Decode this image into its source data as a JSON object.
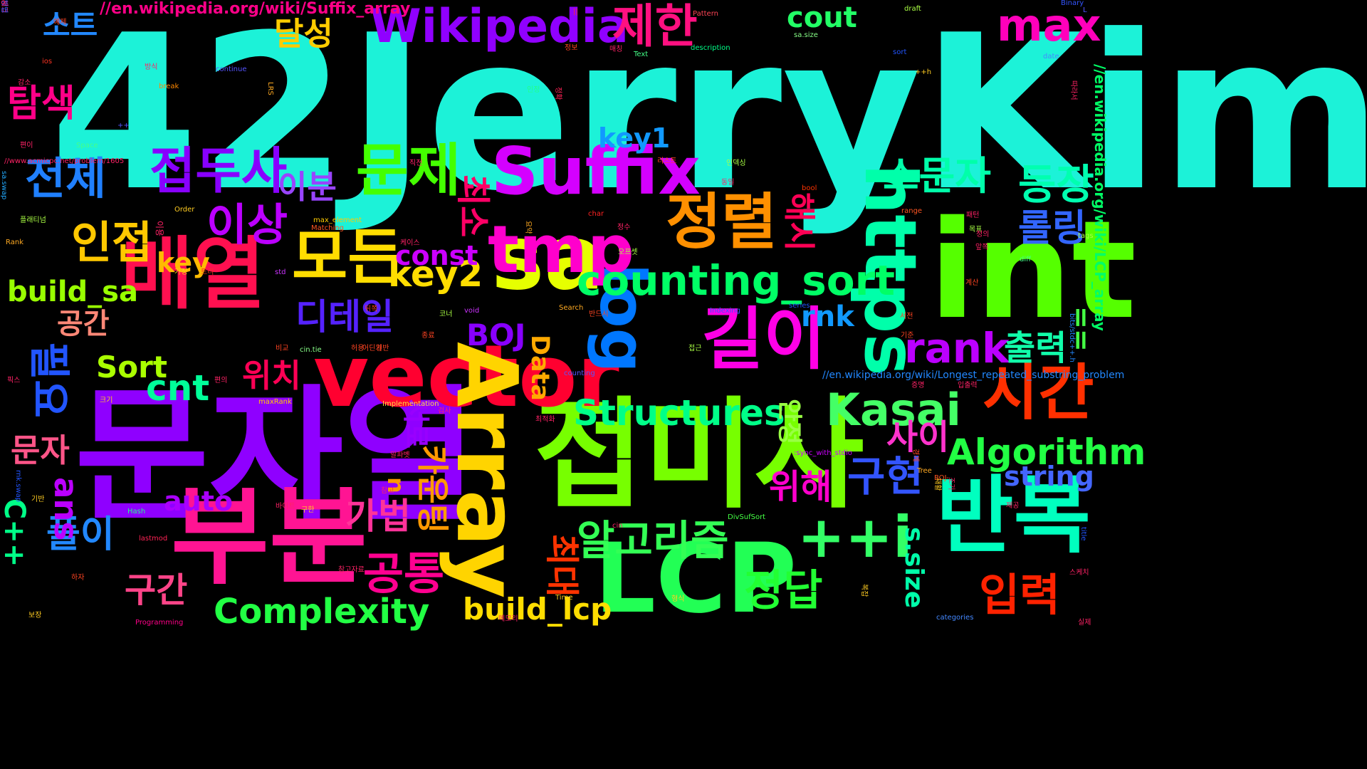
{
  "words": [
    {
      "text": "42JerryKim",
      "color": "#1cf2d8",
      "vertical": false
    },
    {
      "text": "문자열",
      "color": "#8f00ff",
      "vertical": false
    },
    {
      "text": "int",
      "color": "#55ff00",
      "vertical": false
    },
    {
      "text": "접미사",
      "color": "#77ff00",
      "vertical": false
    },
    {
      "text": "부분",
      "color": "#ff1493",
      "vertical": false
    },
    {
      "text": "vector",
      "color": "#ff0030",
      "vertical": false
    },
    {
      "text": "배열",
      "color": "#ff1050",
      "vertical": false
    },
    {
      "text": "반복",
      "color": "#00ffbf",
      "vertical": false
    },
    {
      "text": "LCP",
      "color": "#22ff55",
      "vertical": false
    },
    {
      "text": "Array",
      "color": "#ffd400",
      "vertical": true
    },
    {
      "text": "sa",
      "color": "#e6ff00",
      "vertical": false
    },
    {
      "text": "Suffix",
      "color": "#d400ff",
      "vertical": false
    },
    {
      "text": "https",
      "color": "#00ffaa",
      "vertical": true
    },
    {
      "text": "길이",
      "color": "#ff00e6",
      "vertical": false
    },
    {
      "text": "log",
      "color": "#0077ff",
      "vertical": true
    },
    {
      "text": "tmp",
      "color": "#ff00cc",
      "vertical": false
    },
    {
      "text": "시간",
      "color": "#ff3000",
      "vertical": false
    },
    {
      "text": "모든",
      "color": "#ffdd00",
      "vertical": false
    },
    {
      "text": "정렬",
      "color": "#ff9000",
      "vertical": false
    },
    {
      "text": "문제",
      "color": "#44ff00",
      "vertical": false
    },
    {
      "text": "++i",
      "color": "#33ff66",
      "vertical": false
    },
    {
      "text": "Wikipedia",
      "color": "#9000ff",
      "vertical": false
    },
    {
      "text": "counting_sort",
      "color": "#00ff66",
      "vertical": false
    },
    {
      "text": "Kasai",
      "color": "#44ff66",
      "vertical": false
    },
    {
      "text": "Algorithm",
      "color": "#22ff44",
      "vertical": false
    },
    {
      "text": "Structures",
      "color": "#00ff88",
      "vertical": false
    },
    {
      "text": "Complexity",
      "color": "#22ff44",
      "vertical": false
    },
    {
      "text": "max",
      "color": "#ff00bb",
      "vertical": false
    },
    {
      "text": "rank",
      "color": "#bb00ff",
      "vertical": false
    },
    {
      "text": "접두사",
      "color": "#8800ff",
      "vertical": false
    },
    {
      "text": "인접",
      "color": "#ffc800",
      "vertical": false
    },
    {
      "text": "전체",
      "color": "#2080ff",
      "vertical": false
    },
    {
      "text": "이상",
      "color": "#bb00ff",
      "vertical": false
    },
    {
      "text": "제한",
      "color": "#ff1080",
      "vertical": false
    },
    {
      "text": "입력",
      "color": "#ff2200",
      "vertical": false
    },
    {
      "text": "정답",
      "color": "#22ff33",
      "vertical": false
    },
    {
      "text": "공통",
      "color": "#ff0090",
      "vertical": false
    },
    {
      "text": "구현",
      "color": "#3355ff",
      "vertical": false
    },
    {
      "text": "알고리즘",
      "color": "#33ff55",
      "vertical": false
    },
    {
      "text": "등장",
      "color": "#00ffb0",
      "vertical": false
    },
    {
      "text": "소문자",
      "color": "#00ffaa",
      "vertical": false
    },
    {
      "text": "롤링",
      "color": "#3366ff",
      "vertical": false
    },
    {
      "text": "출력",
      "color": "#11ffaa",
      "vertical": false
    },
    {
      "text": "사이",
      "color": "#ff33cc",
      "vertical": false
    },
    {
      "text": "위해",
      "color": "#ff00cc",
      "vertical": false
    },
    {
      "text": "가법",
      "color": "#ff3399",
      "vertical": false
    },
    {
      "text": "풀이",
      "color": "#2288ff",
      "vertical": false
    },
    {
      "text": "구간",
      "color": "#ff4488",
      "vertical": false
    },
    {
      "text": "문자",
      "color": "#ff5588",
      "vertical": false
    },
    {
      "text": "공간",
      "color": "#ff8877",
      "vertical": false
    },
    {
      "text": "탐색",
      "color": "#ff0088",
      "vertical": false
    },
    {
      "text": "소트",
      "color": "#2288ff",
      "vertical": false
    },
    {
      "text": "달성",
      "color": "#ffcc00",
      "vertical": false
    },
    {
      "text": "이분",
      "color": "#9944ff",
      "vertical": false
    },
    {
      "text": "위치",
      "color": "#ff0055",
      "vertical": false
    },
    {
      "text": "디테일",
      "color": "#5522ff",
      "vertical": false
    },
    {
      "text": "key2",
      "color": "#ffdd00",
      "vertical": false
    },
    {
      "text": "key1",
      "color": "#1199ff",
      "vertical": false
    },
    {
      "text": "key",
      "color": "#ffbb00",
      "vertical": false
    },
    {
      "text": "const",
      "color": "#cc00ff",
      "vertical": false
    },
    {
      "text": "cout",
      "color": "#22ff66",
      "vertical": false
    },
    {
      "text": "cnt",
      "color": "#00ff99",
      "vertical": false
    },
    {
      "text": "build_sa",
      "color": "#99ff00",
      "vertical": false
    },
    {
      "text": "build_lcp",
      "color": "#ffdd00",
      "vertical": false
    },
    {
      "text": "Sort",
      "color": "#aaff00",
      "vertical": false
    },
    {
      "text": "BOJ",
      "color": "#8800ff",
      "vertical": false
    },
    {
      "text": "rnk",
      "color": "#1199ff",
      "vertical": false
    },
    {
      "text": "string",
      "color": "#4466ff",
      "vertical": false
    },
    {
      "text": "auto",
      "color": "#aa00ff",
      "vertical": false
    },
    {
      "text": "ans",
      "color": "#bb00ff",
      "vertical": true
    },
    {
      "text": "s.size",
      "color": "#00ffaa",
      "vertical": true
    },
    {
      "text": "Data",
      "color": "#ffaa00",
      "vertical": true
    },
    {
      "text": "C++",
      "color": "#00ff88",
      "vertical": true
    },
    {
      "text": "==",
      "color": "#44ff44",
      "vertical": true
    },
    {
      "text": "해시",
      "color": "#ff0055",
      "vertical": true
    },
    {
      "text": "최소",
      "color": "#ff0066",
      "vertical": true
    },
    {
      "text": "최대",
      "color": "#ff3300",
      "vertical": true
    },
    {
      "text": "카운팅",
      "color": "#ff9900",
      "vertical": true
    },
    {
      "text": "안정",
      "color": "#99ff44",
      "vertical": true
    },
    {
      "text": "서로",
      "color": "#9900ff",
      "vertical": true
    },
    {
      "text": "n",
      "color": "#ff9900",
      "vertical": true
    },
    {
      "text": "필요",
      "color": "#2255ff",
      "vertical": true
    },
    {
      "text": "//en.wikipedia.org/wiki/Suffix_array",
      "color": "#ff0088",
      "vertical": false
    },
    {
      "text": "//en.wikipedia.org/wiki/LCP_array",
      "color": "#00ff66",
      "vertical": true
    },
    {
      "text": "//en.wikipedia.org/wiki/Longest_repeated_substring_problem",
      "color": "#2288ff",
      "vertical": false
    },
    {
      "text": "//www.acmicpc.net/problem/1605",
      "color": "#ff2266",
      "vertical": false
    },
    {
      "text": ":sync_with_stdio",
      "color": "#cc00ff",
      "vertical": false
    },
    {
      "text": "bits/stdc++.h",
      "color": "#2288ff",
      "vertical": true
    },
    {
      "text": "max_element",
      "color": "#ffcc00",
      "vertical": false
    },
    {
      "text": "maxRank",
      "color": "#ffcc00",
      "vertical": false
    },
    {
      "text": "Implementation",
      "color": "#ffdd44",
      "vertical": false
    },
    {
      "text": "DivSufSort",
      "color": "#44ff44",
      "vertical": false
    },
    {
      "text": "Programming",
      "color": "#ff0088",
      "vertical": false
    },
    {
      "text": "categories",
      "color": "#4488ff",
      "vertical": false
    },
    {
      "text": "description",
      "color": "#00ff88",
      "vertical": false
    },
    {
      "text": "Matching",
      "color": "#ff5522",
      "vertical": false
    },
    {
      "text": "Indexing",
      "color": "#3355ff",
      "vertical": false
    },
    {
      "text": "counting",
      "color": "#5555ff",
      "vertical": false
    },
    {
      "text": "lastmod",
      "color": "#ff2255",
      "vertical": false
    },
    {
      "text": "Pattern",
      "color": "#ff4455",
      "vertical": false
    },
    {
      "text": "Binary",
      "color": "#3355ff",
      "vertical": false
    },
    {
      "text": "Search",
      "color": "#ffaa22",
      "vertical": false
    },
    {
      "text": "continue",
      "color": "#5555ff",
      "vertical": false
    },
    {
      "text": "sa.size",
      "color": "#88ff88",
      "vertical": false
    },
    {
      "text": "sa.swap",
      "color": "#22aaff",
      "vertical": true
    },
    {
      "text": "rnk.swap",
      "color": "#2255ff",
      "vertical": true
    },
    {
      "text": "cin.tie",
      "color": "#88ff88",
      "vertical": false
    },
    {
      "text": "range",
      "color": "#ff5522",
      "vertical": false
    },
    {
      "text": "series",
      "color": "#2255ff",
      "vertical": false
    },
    {
      "text": "title",
      "color": "#2255ff",
      "vertical": true
    },
    {
      "text": "break",
      "color": "#ff8800",
      "vertical": false
    },
    {
      "text": "draft",
      "color": "#aaff44",
      "vertical": false
    },
    {
      "text": "Space",
      "color": "#44ff88",
      "vertical": false
    },
    {
      "text": "Order",
      "color": "#ffcc22",
      "vertical": false
    },
    {
      "text": "Rank",
      "color": "#ffaa22",
      "vertical": false
    },
    {
      "text": "Text",
      "color": "#44ff88",
      "vertical": false
    },
    {
      "text": "Time",
      "color": "#ffcc22",
      "vertical": false
    },
    {
      "text": "Tree",
      "color": "#ffaa22",
      "vertical": false
    },
    {
      "text": "Hash",
      "color": "#22ff88",
      "vertical": false
    },
    {
      "text": "BOJ-",
      "color": "#ff5522",
      "vertical": false
    },
    {
      "text": "tags",
      "color": "#aaff44",
      "vertical": false
    },
    {
      "text": "sort",
      "color": "#2255ff",
      "vertical": false
    },
    {
      "text": "date",
      "color": "#4488ff",
      "vertical": false
    },
    {
      "text": "bool",
      "color": "#ff3300",
      "vertical": false
    },
    {
      "text": "char",
      "color": "#ff2222",
      "vertical": false
    },
    {
      "text": "void",
      "color": "#cc33ff",
      "vertical": false
    },
    {
      "text": "diff",
      "color": "#44ff88",
      "vertical": false
    },
    {
      "text": "std",
      "color": "#cc33ff",
      "vertical": false
    },
    {
      "text": "ios",
      "color": "#ff3322",
      "vertical": false
    },
    {
      "text": "cin",
      "color": "#ff2266",
      "vertical": false
    },
    {
      "text": "LRS",
      "color": "#ffaa22",
      "vertical": true
    },
    {
      "text": "++h",
      "color": "#ffcc22",
      "vertical": false
    },
    {
      "text": "++",
      "color": "#5555ff",
      "vertical": false
    },
    {
      "text": "||",
      "color": "#ff3322",
      "vertical": false
    },
    {
      "text": "L",
      "color": "#5555ff",
      "vertical": false
    },
    {
      "text": "예제",
      "color": "#ff4422",
      "vertical": false
    },
    {
      "text": "정보",
      "color": "#ff4422",
      "vertical": false
    },
    {
      "text": "매칭",
      "color": "#ff2266",
      "vertical": false
    },
    {
      "text": "방식",
      "color": "#ff2266",
      "vertical": false
    },
    {
      "text": "감소",
      "color": "#ff2266",
      "vertical": false
    },
    {
      "text": "인정",
      "color": "#22ff88",
      "vertical": false
    },
    {
      "text": "정확",
      "color": "#ff2255",
      "vertical": true
    },
    {
      "text": "편이",
      "color": "#ff2266",
      "vertical": false
    },
    {
      "text": "직전",
      "color": "#ff2266",
      "vertical": false
    },
    {
      "text": "리스트",
      "color": "#ff4422",
      "vertical": false
    },
    {
      "text": "인덱싱",
      "color": "#aaff44",
      "vertical": false
    },
    {
      "text": "동일",
      "color": "#ff2266",
      "vertical": false
    },
    {
      "text": "플래티넘",
      "color": "#aaff44",
      "vertical": false
    },
    {
      "text": "요약",
      "color": "#ffaa22",
      "vertical": true
    },
    {
      "text": "정수",
      "color": "#ff2266",
      "vertical": false
    },
    {
      "text": "패턴",
      "color": "#ff2266",
      "vertical": false
    },
    {
      "text": "케이스",
      "color": "#ff2266",
      "vertical": false
    },
    {
      "text": "목표",
      "color": "#aaff44",
      "vertical": false
    },
    {
      "text": "정의",
      "color": "#ff2266",
      "vertical": false
    },
    {
      "text": "오프셋",
      "color": "#aaff44",
      "vertical": false
    },
    {
      "text": "앞쪽",
      "color": "#ff2266",
      "vertical": false
    },
    {
      "text": "가정",
      "color": "#ffcc22",
      "vertical": false
    },
    {
      "text": "트리",
      "color": "#ff3322",
      "vertical": false
    },
    {
      "text": "계산",
      "color": "#ff4422",
      "vertical": false
    },
    {
      "text": "뒤쪽",
      "color": "#ff4422",
      "vertical": false
    },
    {
      "text": "반드시",
      "color": "#ff4422",
      "vertical": false
    },
    {
      "text": "서전",
      "color": "#ff4422",
      "vertical": false
    },
    {
      "text": "코너",
      "color": "#aaff44",
      "vertical": false
    },
    {
      "text": "기준",
      "color": "#ff4422",
      "vertical": false
    },
    {
      "text": "종료",
      "color": "#ff4422",
      "vertical": false
    },
    {
      "text": "비교",
      "color": "#ff4422",
      "vertical": false
    },
    {
      "text": "허용",
      "color": "#ff4422",
      "vertical": false
    },
    {
      "text": "어딘가",
      "color": "#ff4422",
      "vertical": false
    },
    {
      "text": "일반",
      "color": "#ff4422",
      "vertical": false
    },
    {
      "text": "접근",
      "color": "#aaff44",
      "vertical": false
    },
    {
      "text": "입출력",
      "color": "#ff2266",
      "vertical": false
    },
    {
      "text": "증명",
      "color": "#ff2266",
      "vertical": false
    },
    {
      "text": "최적화",
      "color": "#ff2266",
      "vertical": false
    },
    {
      "text": "검사",
      "color": "#ff2266",
      "vertical": false
    },
    {
      "text": "알파벳",
      "color": "#ff2266",
      "vertical": false
    },
    {
      "text": "참고",
      "color": "#ff2266",
      "vertical": false
    },
    {
      "text": "기반",
      "color": "#ffcc22",
      "vertical": false
    },
    {
      "text": "바이트",
      "color": "#ff2266",
      "vertical": false
    },
    {
      "text": "제공",
      "color": "#ff2266",
      "vertical": false
    },
    {
      "text": "구한",
      "color": "#ffcc22",
      "vertical": false
    },
    {
      "text": "하자",
      "color": "#ff4422",
      "vertical": false
    },
    {
      "text": "참고자료",
      "color": "#ff2266",
      "vertical": false
    },
    {
      "text": "형식",
      "color": "#ffcc22",
      "vertical": false
    },
    {
      "text": "스케치",
      "color": "#ff2266",
      "vertical": false
    },
    {
      "text": "보장",
      "color": "#ffcc22",
      "vertical": false
    },
    {
      "text": "메모리",
      "color": "#ff2266",
      "vertical": false
    },
    {
      "text": "실제",
      "color": "#ff2266",
      "vertical": false
    },
    {
      "text": "크기",
      "color": "#ffcc22",
      "vertical": false
    },
    {
      "text": "픽스",
      "color": "#ff2266",
      "vertical": false
    },
    {
      "text": "편의",
      "color": "#ff2266",
      "vertical": false
    },
    {
      "text": "경계",
      "color": "#ff4422",
      "vertical": true
    },
    {
      "text": "재활",
      "color": "#ffcc22",
      "vertical": true
    },
    {
      "text": "조기",
      "color": "#ff2266",
      "vertical": true
    },
    {
      "text": "복잡",
      "color": "#ffcc22",
      "vertical": true
    },
    {
      "text": "따라서",
      "color": "#ff2266",
      "vertical": true
    },
    {
      "text": "이용",
      "color": "#ff2266",
      "vertical": true
    },
    {
      "text": "채크",
      "color": "#ff2266",
      "vertical": true
    },
    {
      "text": "방법",
      "color": "#3355ff",
      "vertical": true
    },
    {
      "text": "ㅇ",
      "color": "#ff2266",
      "vertical": false
    }
  ]
}
